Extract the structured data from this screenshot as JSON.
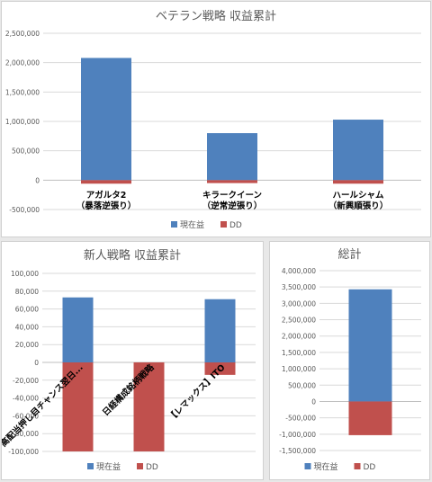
{
  "colors": {
    "current": "#4f81bd",
    "dd": "#c0504d",
    "grid": "#d9d9d9",
    "axis": "#bfbfbf"
  },
  "chart_data": [
    {
      "type": "bar",
      "title": "ベテラン戦略 収益累計",
      "categories": [
        [
          "アガルタ2",
          "（暴落逆張り）"
        ],
        [
          "キラークイーン",
          "（逆常逆張り）"
        ],
        [
          "ハールシャム",
          "（新興順張り）"
        ]
      ],
      "series": [
        {
          "name": "現在益",
          "values": [
            2080000,
            800000,
            1030000
          ]
        },
        {
          "name": "DD",
          "values": [
            -60000,
            -50000,
            -60000
          ]
        }
      ],
      "ylim": [
        -500000,
        2500000
      ],
      "yticks": [
        "-500,000",
        "0",
        "500,000",
        "1,000,000",
        "1,500,000",
        "2,000,000",
        "2,500,000"
      ],
      "legend": "bottom",
      "grid": true
    },
    {
      "type": "bar",
      "title": "新人戦略 収益累計",
      "categories": [
        [
          "高配当押し目チャンス翌日..."
        ],
        [
          "日経構成銘柄戦略"
        ],
        [
          "【レマックス】ITO"
        ]
      ],
      "series": [
        {
          "name": "現在益",
          "values": [
            73000,
            0,
            71000
          ]
        },
        {
          "name": "DD",
          "values": [
            -100000,
            -100000,
            -14000
          ]
        }
      ],
      "ylim": [
        -100000,
        100000
      ],
      "yticks": [
        "-100,000",
        "-80,000",
        "-60,000",
        "-40,000",
        "-20,000",
        "0",
        "20,000",
        "40,000",
        "60,000",
        "80,000",
        "100,000"
      ],
      "legend": "bottom",
      "grid": true
    },
    {
      "type": "bar",
      "title": "総計",
      "categories": [
        [
          ""
        ]
      ],
      "series": [
        {
          "name": "現在益",
          "values": [
            3430000
          ]
        },
        {
          "name": "DD",
          "values": [
            -1030000
          ]
        }
      ],
      "ylim": [
        -1500000,
        4000000
      ],
      "yticks": [
        "-1,500,000",
        "-1,000,000",
        "-500,000",
        "0",
        "500,000",
        "1,000,000",
        "1,500,000",
        "2,000,000",
        "2,500,000",
        "3,000,000",
        "3,500,000",
        "4,000,000"
      ],
      "legend": "bottom",
      "grid": true
    }
  ]
}
